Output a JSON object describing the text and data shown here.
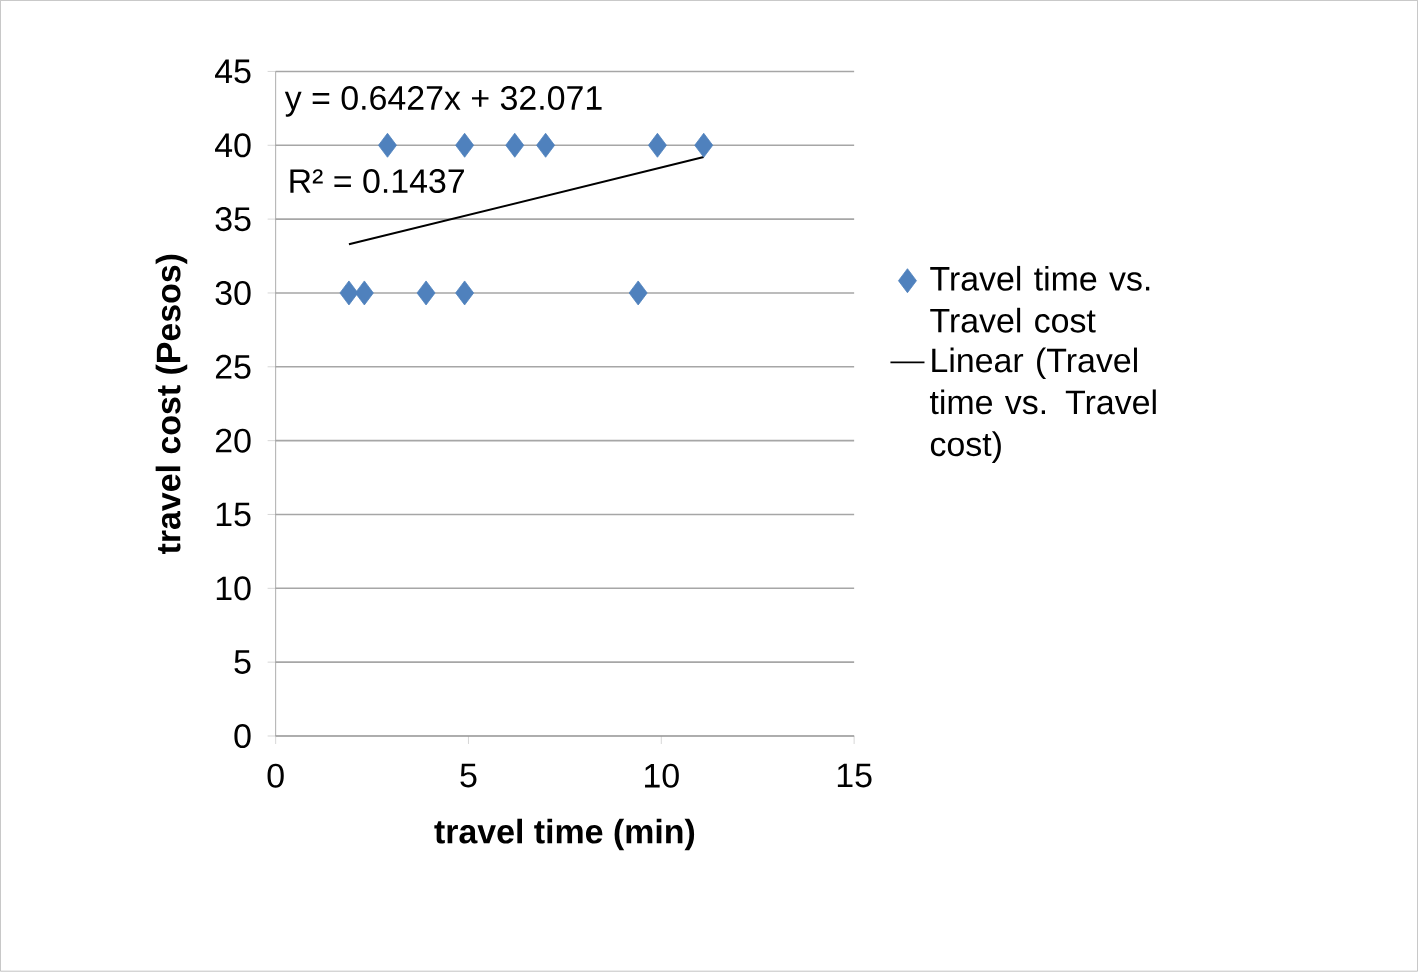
{
  "chart_data": {
    "type": "scatter",
    "xlabel": "travel  time (min)",
    "ylabel": "travel cost (Pesos)",
    "xlim": [
      0,
      15
    ],
    "ylim": [
      0,
      45
    ],
    "xticks": [
      0,
      5,
      10,
      15
    ],
    "yticks": [
      0,
      5,
      10,
      15,
      20,
      25,
      30,
      35,
      40,
      45
    ],
    "grid": "y",
    "legend": "right",
    "annotations": [
      "y = 0.6427x + 32.071",
      "R² = 0.1437"
    ],
    "series": [
      {
        "name": "Travel time vs. Travel cost",
        "marker": "diamond",
        "color": "#4f81bd",
        "x": [
          1.9,
          2.3,
          3.9,
          4.9,
          9.4,
          2.9,
          4.9,
          6.2,
          7.0,
          9.9,
          11.1
        ],
        "values": [
          30,
          30,
          30,
          30,
          30,
          40,
          40,
          40,
          40,
          40,
          40
        ]
      },
      {
        "name": "Linear (Travel time vs. Travel cost)",
        "type": "line",
        "marker": "none",
        "line_style": "solid",
        "color": "#000000",
        "x": [
          1.9,
          11.1
        ],
        "values": [
          33.3,
          39.2
        ]
      }
    ]
  }
}
